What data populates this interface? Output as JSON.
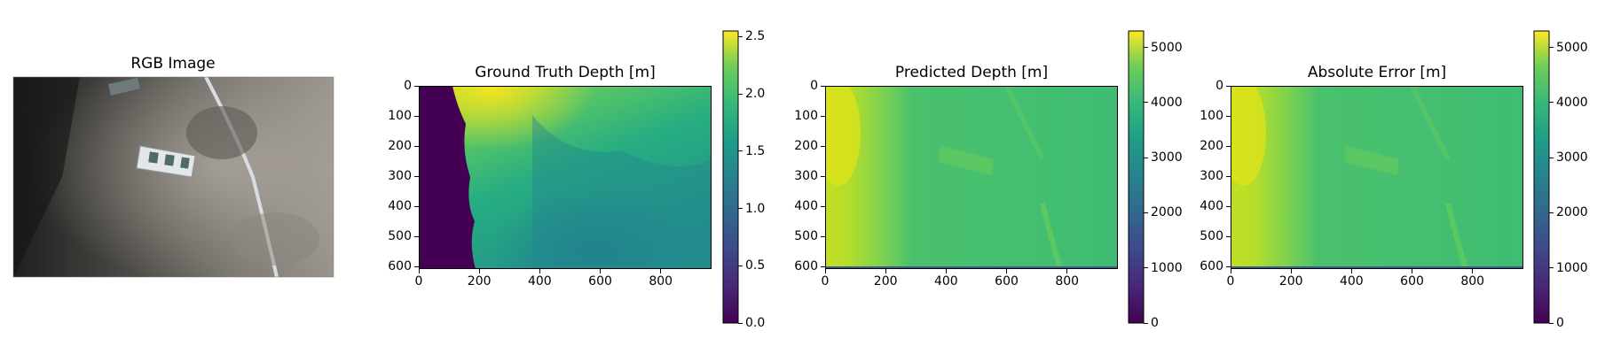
{
  "chart_data": [
    {
      "type": "image",
      "title": "RGB Image",
      "content": "underwater photo of seabed with a measuring tape and marker boards"
    },
    {
      "type": "heatmap",
      "title": "Ground Truth Depth [m]",
      "colormap": "viridis",
      "x_ticks": [
        0,
        200,
        400,
        600,
        800
      ],
      "y_ticks": [
        0,
        100,
        200,
        300,
        400,
        500,
        600
      ],
      "xlim": [
        0,
        968
      ],
      "ylim": [
        608,
        0
      ],
      "colorbar": {
        "min": 0.0,
        "max": 2.55,
        "ticks": [
          "0.0",
          "0.5",
          "1.0",
          "1.5",
          "2.0",
          "2.5"
        ]
      }
    },
    {
      "type": "heatmap",
      "title": "Predicted Depth [m]",
      "colormap": "viridis",
      "x_ticks": [
        0,
        200,
        400,
        600,
        800
      ],
      "y_ticks": [
        0,
        100,
        200,
        300,
        400,
        500,
        600
      ],
      "xlim": [
        0,
        968
      ],
      "ylim": [
        608,
        0
      ],
      "colorbar": {
        "min": 0,
        "max": 5300,
        "ticks": [
          "0",
          "1000",
          "2000",
          "3000",
          "4000",
          "5000"
        ]
      }
    },
    {
      "type": "heatmap",
      "title": "Absolute Error [m]",
      "colormap": "viridis",
      "x_ticks": [
        0,
        200,
        400,
        600,
        800
      ],
      "y_ticks": [
        0,
        100,
        200,
        300,
        400,
        500,
        600
      ],
      "xlim": [
        0,
        968
      ],
      "ylim": [
        608,
        0
      ],
      "colorbar": {
        "min": 0,
        "max": 5300,
        "ticks": [
          "0",
          "1000",
          "2000",
          "3000",
          "4000",
          "5000"
        ]
      }
    }
  ],
  "colors": {
    "viridis_low": "#440154",
    "viridis_mid": "#21918c",
    "viridis_high": "#fde725"
  }
}
